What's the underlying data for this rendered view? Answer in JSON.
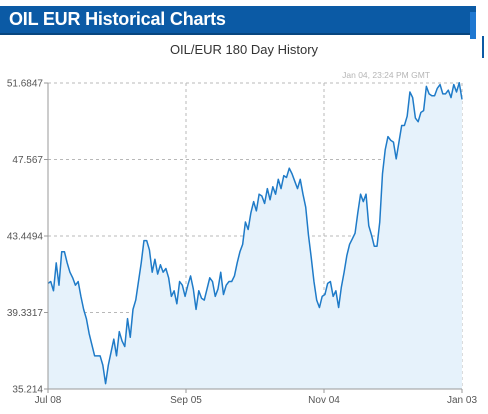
{
  "header": {
    "title": "OIL EUR Historical Charts"
  },
  "colors": {
    "header_bg": "#0b5aa5",
    "line": "#1f7bc8",
    "area": "#e6f2fb"
  },
  "chart_data": {
    "type": "area",
    "title": "OIL/EUR  180 Day History",
    "timestamp": "Jan 04, 23:24 PM GMT",
    "xlabel": "",
    "ylabel": "",
    "x_ticks": [
      "Jul 08",
      "Sep 05",
      "Nov 04",
      "Jan 03"
    ],
    "y_ticks": [
      "51.6847",
      "47.567",
      "43.4494",
      "39.3317",
      "35.214"
    ],
    "ylim": [
      35.214,
      51.6847
    ],
    "grid": true,
    "series": [
      {
        "values": [
          40.9,
          41.0,
          40.5,
          42.0,
          40.8,
          42.6,
          42.6,
          42.0,
          41.5,
          41.2,
          40.8,
          41.0,
          40.2,
          39.5,
          39.0,
          38.2,
          37.6,
          37.0,
          37.0,
          37.0,
          36.5,
          35.5,
          36.5,
          37.2,
          37.9,
          37.0,
          38.3,
          37.8,
          37.5,
          39.0,
          38.0,
          39.5,
          40.0,
          41.0,
          42.0,
          43.2,
          43.2,
          42.7,
          41.5,
          42.2,
          41.4,
          41.9,
          41.5,
          41.7,
          41.2,
          40.2,
          40.5,
          39.8,
          41.0,
          40.8,
          40.2,
          40.8,
          41.3,
          40.6,
          39.5,
          40.5,
          40.1,
          40.0,
          40.6,
          41.2,
          41.0,
          40.2,
          40.6,
          41.5,
          40.3,
          40.8,
          41.0,
          41.0,
          41.3,
          42.0,
          42.6,
          43.0,
          44.2,
          43.8,
          44.7,
          45.3,
          44.8,
          45.7,
          45.6,
          45.2,
          46.0,
          45.4,
          46.1,
          45.7,
          46.5,
          46.0,
          46.7,
          46.6,
          47.1,
          46.8,
          46.4,
          46.0,
          46.5,
          45.7,
          45.0,
          43.5,
          42.3,
          41.0,
          40.0,
          39.6,
          40.2,
          40.3,
          40.9,
          41.0,
          40.2,
          40.5,
          39.6,
          40.7,
          41.5,
          42.4,
          43.0,
          43.3,
          43.6,
          44.7,
          45.7,
          45.3,
          45.7,
          44.0,
          43.5,
          42.9,
          42.9,
          44.2,
          46.8,
          48.1,
          48.8,
          48.6,
          48.5,
          47.6,
          48.5,
          49.4,
          49.4,
          49.9,
          51.2,
          50.9,
          49.8,
          49.6,
          50.1,
          50.2,
          51.5,
          51.1,
          51.0,
          51.0,
          51.4,
          51.6,
          51.1,
          51.1,
          51.3,
          50.9,
          51.6,
          51.2,
          51.7,
          50.8
        ]
      }
    ]
  }
}
